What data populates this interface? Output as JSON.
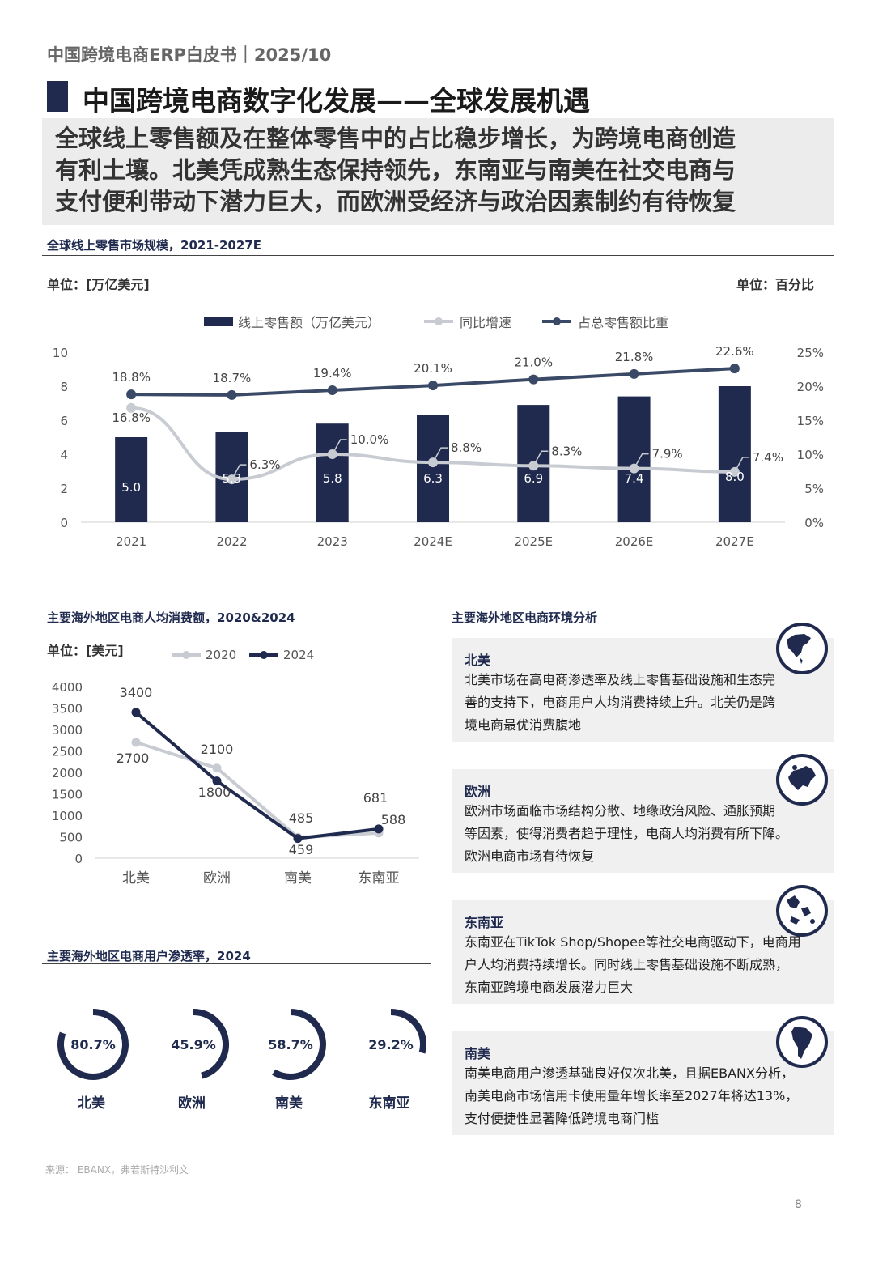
{
  "header": {
    "title": "中国跨境电商ERP白皮书｜2025/10"
  },
  "main_title": "中国跨境电商数字化发展——全球发展机遇",
  "summary": {
    "line1": "全球线上零售额及在整体零售中的占比稳步增长，为跨境电商创造",
    "line2": "有利土壤。北美凭成熟生态保持领先，东南亚与南美在社交电商与",
    "line3": "支付便利带动下潜力巨大，而欧洲受经济与政治因素制约有待恢复"
  },
  "chart1": {
    "section_title": "全球线上零售市场规模，2021-2027E",
    "unit_left": "单位：[万亿美元]",
    "unit_right": "单位：百分比"
  },
  "chart2": {
    "section_title": "主要海外地区电商人均消费额，2020&2024",
    "unit": "单位：[美元]"
  },
  "chart3": {
    "section_title": "主要海外地区电商用户渗透率，2024"
  },
  "analysis": {
    "section_title": "主要海外地区电商环境分析",
    "cards": [
      {
        "title": "北美",
        "icon": "north-america-icon",
        "lines": [
          "北美市场在高电商渗透率及线上零售基础设施和生态完",
          "善的支持下，电商用户人均消费持续上升。北美仍是跨",
          "境电商最优消费腹地"
        ]
      },
      {
        "title": "欧洲",
        "icon": "europe-icon",
        "lines": [
          "欧洲市场面临市场结构分散、地缘政治风险、通胀预期",
          "等因素，使得消费者趋于理性，电商人均消费有所下降。",
          "欧洲电商市场有待恢复"
        ]
      },
      {
        "title": "东南亚",
        "icon": "southeast-asia-icon",
        "lines": [
          "东南亚在TikTok Shop/Shopee等社交电商驱动下，电商用",
          "户人均消费持续增长。同时线上零售基础设施不断成熟，",
          "东南亚跨境电商发展潜力巨大"
        ]
      },
      {
        "title": "南美",
        "icon": "south-america-icon",
        "lines": [
          "南美电商用户渗透基础良好仅次北美，且据EBANX分析，",
          "南美电商市场信用卡使用量年增长率至2027年将达13%，",
          "支付便捷性显著降低跨境电商门槛"
        ]
      }
    ]
  },
  "source": "来源：  EBANX，弗若斯特沙利文",
  "page_number": "8",
  "colors": {
    "navy": "#1f2a4e",
    "line_navy": "#3a4a66",
    "light_gray": "#c8ccd2"
  },
  "chart_data": [
    {
      "type": "bar",
      "title": "全球线上零售市场规模，2021-2027E",
      "categories": [
        "2021",
        "2022",
        "2023",
        "2024E",
        "2025E",
        "2026E",
        "2027E"
      ],
      "y_left_ticks": [
        "0",
        "2",
        "4",
        "6",
        "8",
        "10"
      ],
      "y_right_ticks": [
        "0%",
        "5%",
        "10%",
        "15%",
        "20%",
        "25%"
      ],
      "ylim_left": [
        0,
        10
      ],
      "ylim_right": [
        0,
        25
      ],
      "series": [
        {
          "name": "线上零售额（万亿美元）",
          "kind": "bar",
          "axis": "left",
          "values": [
            5.0,
            5.3,
            5.8,
            6.3,
            6.9,
            7.4,
            8.0
          ],
          "labels": [
            "5.0",
            "5.3",
            "5.8",
            "6.3",
            "6.9",
            "7.4",
            "8.0"
          ]
        },
        {
          "name": "同比增速",
          "kind": "line",
          "axis": "right",
          "values": [
            16.8,
            6.3,
            10.0,
            8.8,
            8.3,
            7.9,
            7.4
          ],
          "labels": [
            "16.8%",
            "6.3%",
            "10.0%",
            "8.8%",
            "8.3%",
            "7.9%",
            "7.4%"
          ]
        },
        {
          "name": "占总零售额比重",
          "kind": "line",
          "axis": "right",
          "values": [
            18.8,
            18.7,
            19.4,
            20.1,
            21.0,
            21.8,
            22.6
          ],
          "labels": [
            "18.8%",
            "18.7%",
            "19.4%",
            "20.1%",
            "21.0%",
            "21.8%",
            "22.6%"
          ]
        }
      ]
    },
    {
      "type": "line",
      "title": "主要海外地区电商人均消费额，2020&2024",
      "categories": [
        "北美",
        "欧洲",
        "南美",
        "东南亚"
      ],
      "y_ticks": [
        "0",
        "500",
        "1000",
        "1500",
        "2000",
        "2500",
        "3000",
        "3500",
        "4000"
      ],
      "ylim": [
        0,
        4000
      ],
      "series": [
        {
          "name": "2020",
          "values": [
            2700,
            2100,
            485,
            588
          ],
          "labels": [
            "2700",
            "2100",
            "485",
            "588"
          ]
        },
        {
          "name": "2024",
          "values": [
            3400,
            1800,
            459,
            681
          ],
          "labels": [
            "3400",
            "1800",
            "459",
            "681"
          ]
        }
      ]
    },
    {
      "type": "pie",
      "title": "主要海外地区电商用户渗透率，2024",
      "categories": [
        "北美",
        "欧洲",
        "南美",
        "东南亚"
      ],
      "values": [
        80.7,
        45.9,
        58.7,
        29.2
      ],
      "labels": [
        "80.7%",
        "45.9%",
        "58.7%",
        "29.2%"
      ]
    }
  ]
}
